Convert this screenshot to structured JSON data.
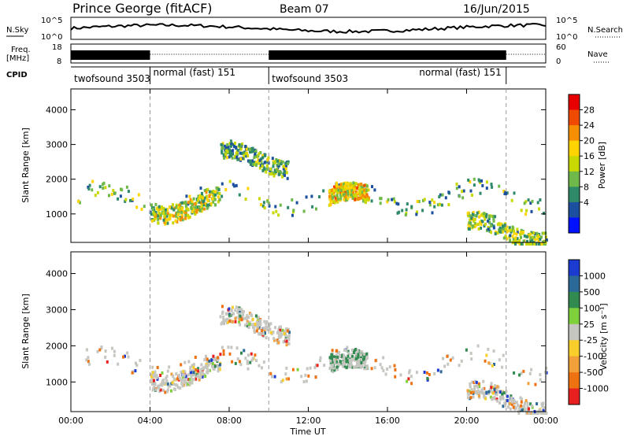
{
  "header": {
    "station": "Prince George (fitACF)",
    "beam": "Beam 07",
    "date": "16/Jun/2015"
  },
  "noise_panel": {
    "left_label": "N.Sky",
    "left_ticks": [
      "10^5",
      "10^0"
    ],
    "right_ticks": [
      "10^5",
      "10^0"
    ],
    "right_label": "N.Search"
  },
  "freq_panel": {
    "label_line1": "Freq.",
    "label_line2": "[MHz]",
    "left_ticks": [
      "18",
      "8"
    ],
    "right_ticks": [
      "60",
      "0"
    ],
    "right_label": "Nave"
  },
  "cpid_panel": {
    "label": "CPID",
    "segments": [
      {
        "name": "twofsound",
        "id": "3503",
        "start_h": 0,
        "end_h": 4
      },
      {
        "name": "normal (fast)",
        "id": "151",
        "start_h": 4,
        "end_h": 10
      },
      {
        "name": "twofsound",
        "id": "3503",
        "start_h": 10,
        "end_h": 22
      },
      {
        "name": "normal (fast)",
        "id": "151",
        "start_h": 22,
        "end_h": 24
      }
    ]
  },
  "axes": {
    "ylabel": "Slant Range [km]",
    "xlabel": "Time UT",
    "y_ticks": [
      "4000",
      "3000",
      "2000",
      "1000"
    ],
    "x_ticks": [
      "00:00",
      "04:00",
      "08:00",
      "12:00",
      "16:00",
      "20:00",
      "00:00"
    ]
  },
  "power_colorbar": {
    "label": "Power [dB]",
    "ticks": [
      "28",
      "24",
      "20",
      "16",
      "12",
      "8",
      "4"
    ],
    "colors": [
      "#e80000",
      "#f04a00",
      "#f58e00",
      "#ffd400",
      "#c8d800",
      "#6fb84a",
      "#2e8a68",
      "#1c4fa0",
      "#0011ff"
    ]
  },
  "velocity_colorbar": {
    "label": "Velocity [m s⁻¹]",
    "ticks": [
      "1000",
      "500",
      "100",
      "25",
      "-25",
      "-100",
      "-500",
      "-1000"
    ],
    "colors": [
      "#1c3bd0",
      "#2b6a98",
      "#318a50",
      "#7ed13a",
      "#c6c6c0",
      "#f8cf2a",
      "#f2a03a",
      "#ef7212",
      "#e82020"
    ]
  },
  "chart_data": {
    "type": "heatmap",
    "title": "Prince George (fitACF)",
    "xlabel": "Time UT",
    "ylabel": "Slant Range [km]",
    "xlim": [
      0,
      24
    ],
    "ylim": [
      180,
      4600
    ],
    "x_ticks_hours": [
      0,
      4,
      8,
      12,
      16,
      20,
      24
    ],
    "y_ticks_km": [
      1000,
      2000,
      3000,
      4000
    ],
    "cpid_switch_hours": [
      4,
      10,
      22
    ],
    "power_bands": [
      {
        "from_h": 0.3,
        "to_h": 24,
        "range_km": 1500,
        "dB": 20
      },
      {
        "from_h": 4,
        "to_h": 7.5,
        "range_km": 1300,
        "dB": 24
      },
      {
        "from_h": 7.5,
        "to_h": 11,
        "range_km": 2600,
        "dB": 20
      },
      {
        "from_h": 13,
        "to_h": 15,
        "range_km": 1400,
        "dB": 26
      },
      {
        "from_h": 20,
        "to_h": 24,
        "range_km": 550,
        "dB": 22
      }
    ],
    "velocity_ranges_m_s": {
      "min": -1000,
      "max": 1000
    }
  }
}
